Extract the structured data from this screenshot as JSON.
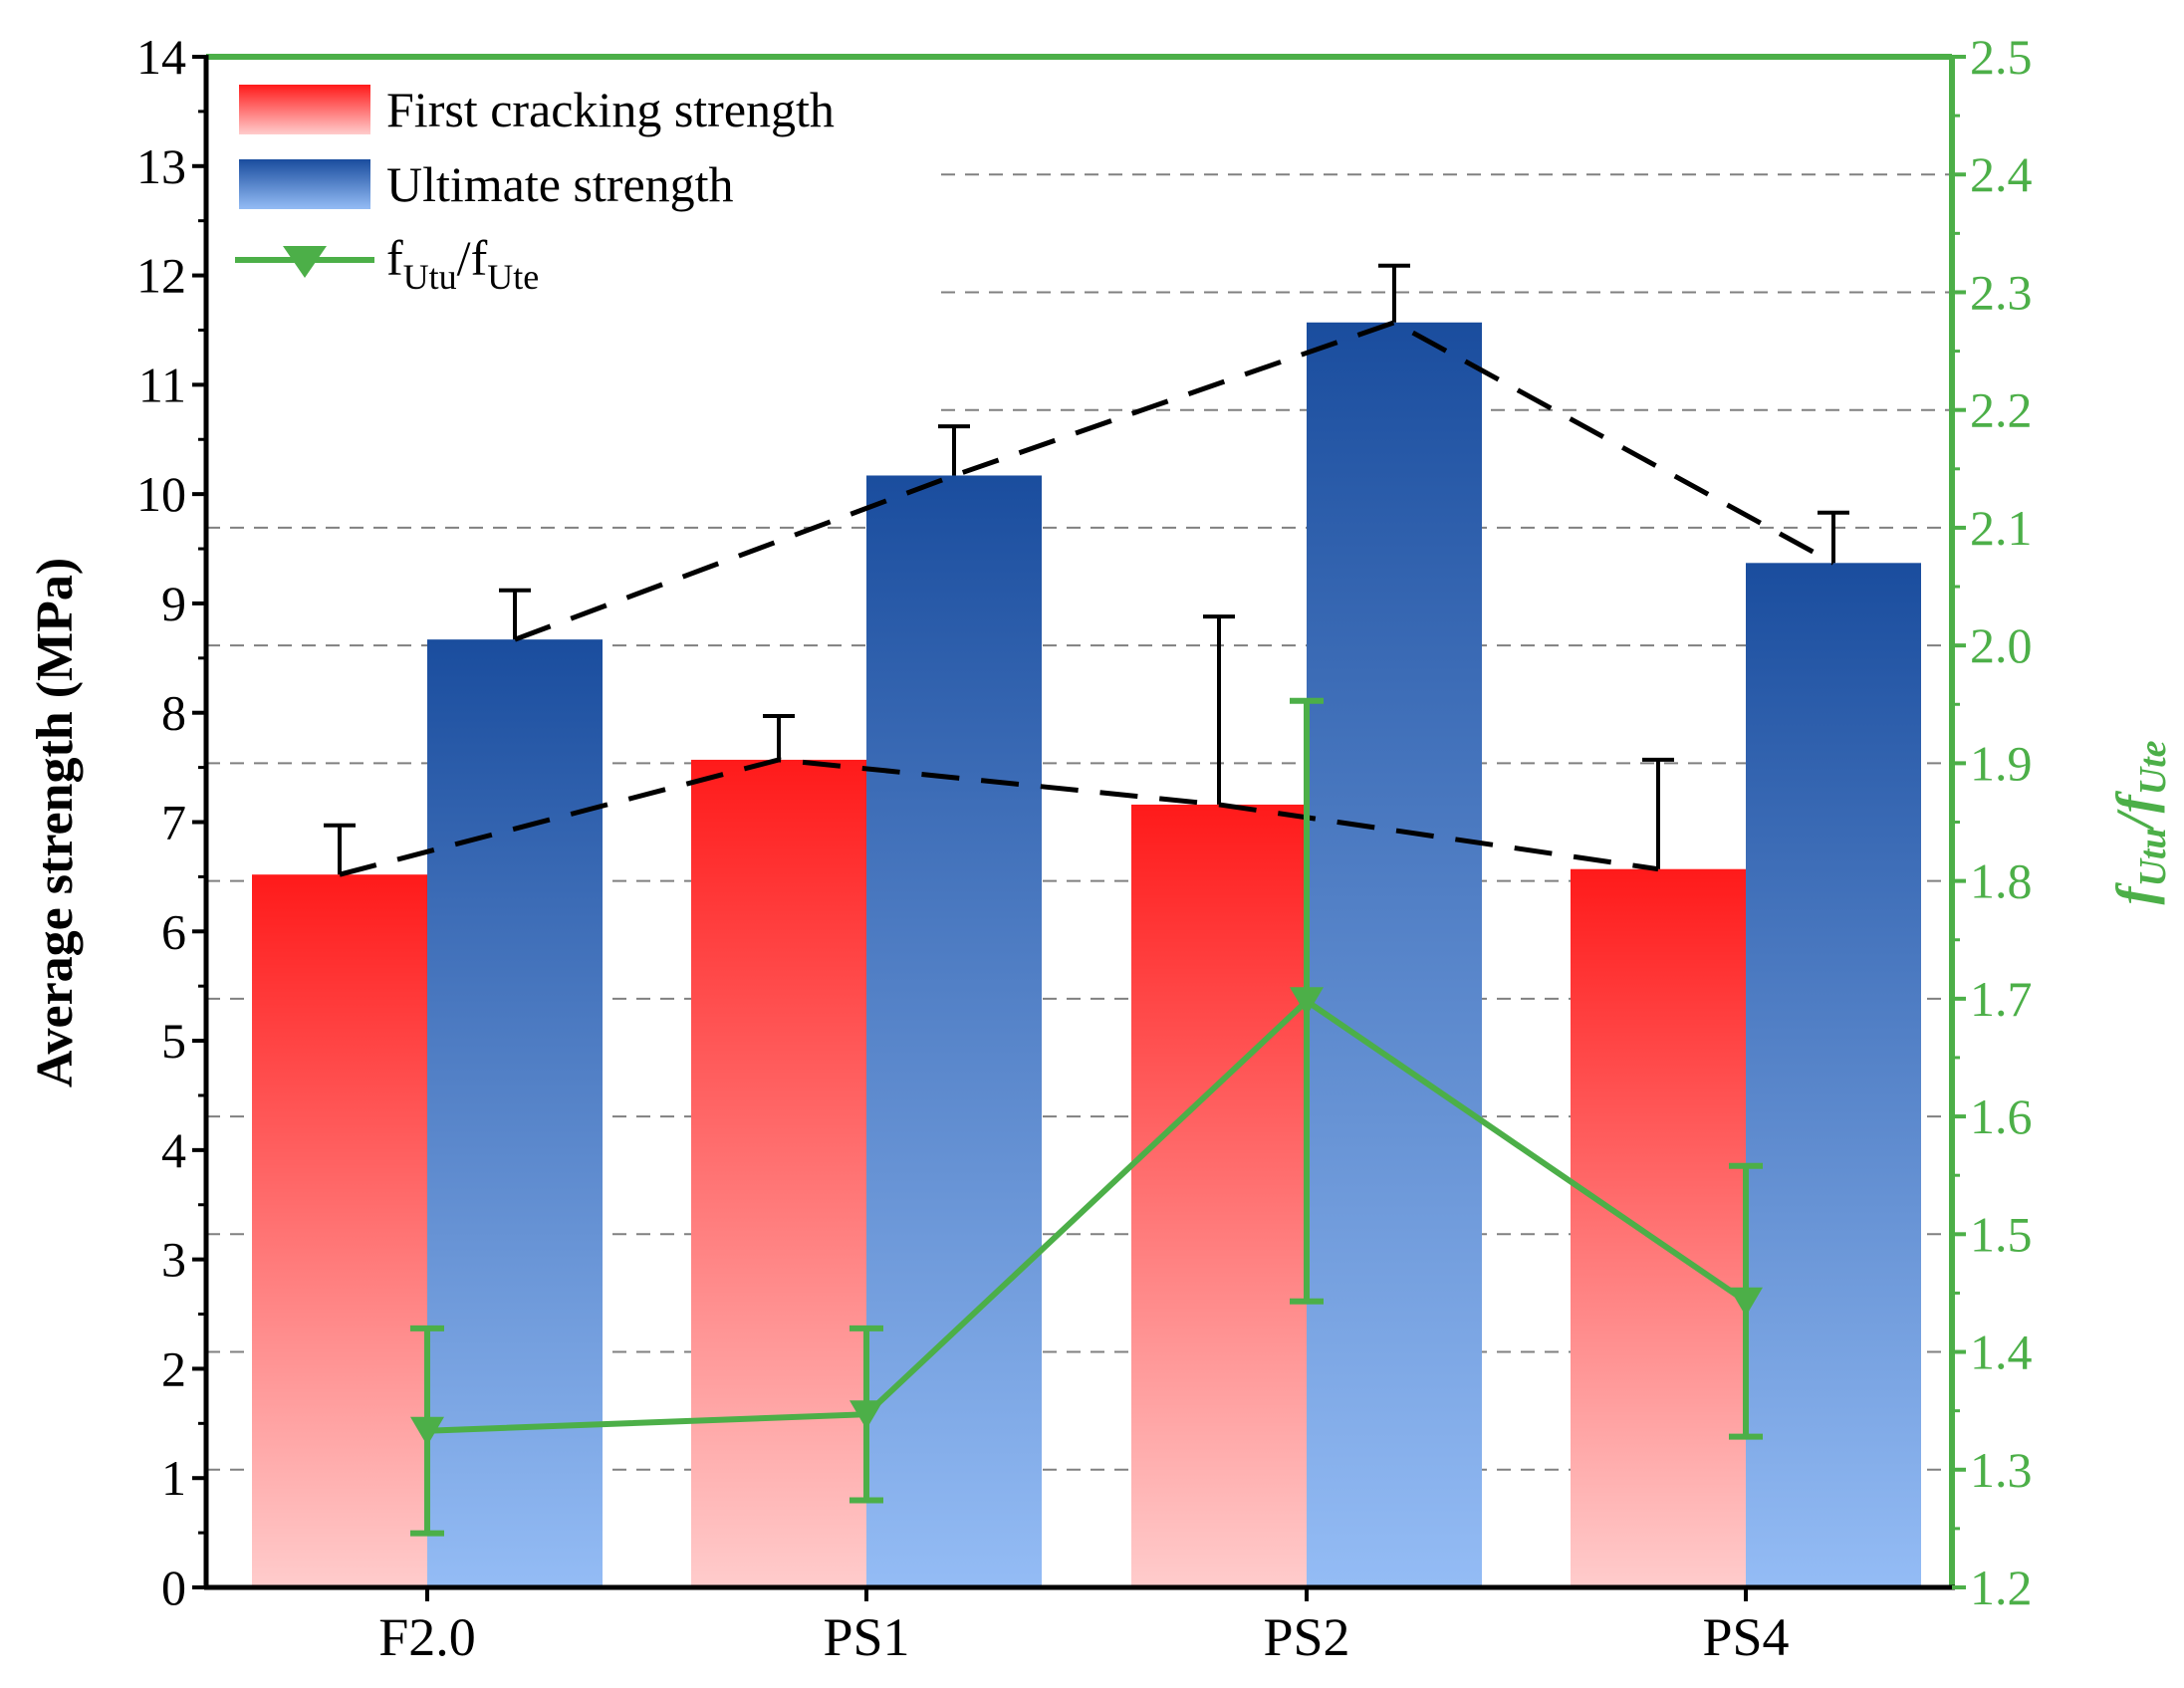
{
  "chart_data": {
    "type": "bar",
    "categories": [
      "F2.0",
      "PS1",
      "PS2",
      "PS4"
    ],
    "series": [
      {
        "name": "First cracking strength",
        "axis": "left",
        "values": [
          6.52,
          7.57,
          7.16,
          6.57
        ],
        "errors": [
          0.45,
          0.4,
          1.72,
          1.0
        ]
      },
      {
        "name": "Ultimate strength",
        "axis": "left",
        "values": [
          8.67,
          10.17,
          11.57,
          9.37
        ],
        "errors": [
          0.45,
          0.45,
          0.52,
          0.46
        ]
      },
      {
        "name": "fUtu/fUte",
        "type": "line",
        "axis": "right",
        "marker": "triangle-down",
        "values": [
          1.333,
          1.347,
          1.698,
          1.443
        ],
        "errors": [
          0.087,
          0.073,
          0.255,
          0.115
        ]
      }
    ],
    "trend_lines": [
      {
        "of": "First cracking strength",
        "style": "dashed"
      },
      {
        "of": "Ultimate strength",
        "style": "dashed"
      }
    ],
    "yleft": {
      "label": "Average strength (MPa)",
      "lim": [
        0,
        14
      ],
      "ticks": [
        "0",
        "1",
        "2",
        "3",
        "4",
        "5",
        "6",
        "7",
        "8",
        "9",
        "10",
        "11",
        "12",
        "13",
        "14"
      ]
    },
    "yright": {
      "label_main": "f",
      "label_sub": "Utu",
      "label_sep": "/",
      "label_main2": "f",
      "label_sub2": "Ute",
      "lim": [
        1.2,
        2.5
      ],
      "ticks": [
        "1.2",
        "1.3",
        "1.4",
        "1.5",
        "1.6",
        "1.7",
        "1.8",
        "1.9",
        "2.0",
        "2.1",
        "2.2",
        "2.3",
        "2.4",
        "2.5"
      ]
    },
    "grid": "horizontal-dashed",
    "legend": {
      "position": "top-left",
      "item1": "First cracking strength",
      "item2": "Ultimate strength",
      "item3_main": "f",
      "item3_sub": "Utu",
      "item3_sep": "/",
      "item3_main2": "f",
      "item3_sub2": "Ute"
    },
    "colors": {
      "first_top": "#ff1a1a",
      "first_bottom": "#ffcccc",
      "ult_top": "#1a4d9e",
      "ult_bottom": "#94bcf5",
      "ratio": "#4caf48",
      "axis": "#000000"
    }
  }
}
